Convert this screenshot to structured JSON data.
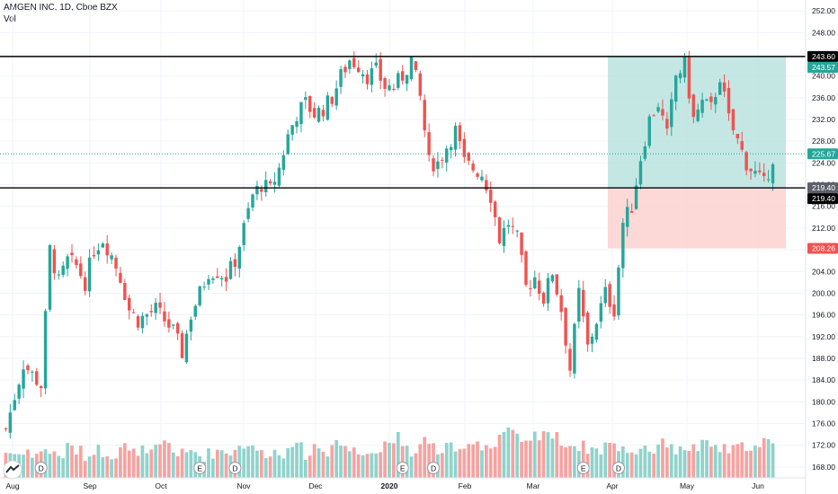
{
  "header": {
    "title": "AMGEN INC, 1D, Cboe BZX",
    "vol_label": "Vol"
  },
  "colors": {
    "up": "#26a69a",
    "down": "#ef5350",
    "vol_up": "#8fd3cc",
    "vol_down": "#f5a3a1",
    "target_zone": "#b2dfdb",
    "stop_zone": "#fcd1d0",
    "line": "#000000",
    "current": "#26a69a"
  },
  "chart_data": {
    "type": "candlestick",
    "title": "AMGEN INC, 1D, Cboe BZX",
    "ylim": [
      166,
      254
    ],
    "y_ticks": [
      "252.00",
      "248.00",
      "244.00",
      "240.00",
      "236.00",
      "232.00",
      "228.00",
      "224.00",
      "220.00",
      "216.00",
      "212.00",
      "208.00",
      "204.00",
      "200.00",
      "196.00",
      "192.00",
      "188.00",
      "184.00",
      "180.00",
      "176.00",
      "172.00",
      "168.00"
    ],
    "x_ticks": [
      "Aug",
      "Sep",
      "Oct",
      "Nov",
      "Dec",
      "2020",
      "Feb",
      "Mar",
      "Apr",
      "May",
      "Jun"
    ],
    "close_points": [
      [
        0,
        175
      ],
      [
        4,
        187
      ],
      [
        8,
        183
      ],
      [
        10,
        208
      ],
      [
        12,
        202
      ],
      [
        14,
        206
      ],
      [
        16,
        205
      ],
      [
        18,
        202
      ],
      [
        20,
        208
      ],
      [
        22,
        210
      ],
      [
        24,
        207
      ],
      [
        26,
        203
      ],
      [
        28,
        197
      ],
      [
        30,
        195
      ],
      [
        32,
        196
      ],
      [
        34,
        197
      ],
      [
        36,
        195
      ],
      [
        38,
        193
      ],
      [
        40,
        189
      ],
      [
        42,
        196
      ],
      [
        44,
        200
      ],
      [
        46,
        204
      ],
      [
        48,
        204
      ],
      [
        50,
        203
      ],
      [
        52,
        206
      ],
      [
        54,
        212
      ],
      [
        56,
        218
      ],
      [
        58,
        220
      ],
      [
        60,
        219
      ],
      [
        62,
        223
      ],
      [
        64,
        229
      ],
      [
        66,
        233
      ],
      [
        68,
        235
      ],
      [
        70,
        233
      ],
      [
        72,
        234
      ],
      [
        74,
        236
      ],
      [
        76,
        240
      ],
      [
        78,
        243
      ],
      [
        80,
        242
      ],
      [
        82,
        240
      ],
      [
        84,
        241
      ],
      [
        86,
        238
      ],
      [
        88,
        238
      ],
      [
        90,
        240
      ],
      [
        92,
        243
      ],
      [
        94,
        236
      ],
      [
        96,
        224
      ],
      [
        98,
        224
      ],
      [
        100,
        227
      ],
      [
        102,
        230
      ],
      [
        104,
        224
      ],
      [
        106,
        223
      ],
      [
        108,
        222
      ],
      [
        110,
        218
      ],
      [
        112,
        210
      ],
      [
        114,
        213
      ],
      [
        116,
        210
      ],
      [
        118,
        201
      ],
      [
        120,
        203
      ],
      [
        122,
        199
      ],
      [
        124,
        204
      ],
      [
        126,
        197
      ],
      [
        128,
        186
      ],
      [
        130,
        200
      ],
      [
        132,
        190
      ],
      [
        134,
        195
      ],
      [
        136,
        200
      ],
      [
        138,
        197
      ],
      [
        140,
        213
      ],
      [
        142,
        216
      ],
      [
        144,
        225
      ],
      [
        146,
        232
      ],
      [
        148,
        235
      ],
      [
        150,
        229
      ],
      [
        152,
        240
      ],
      [
        154,
        242
      ],
      [
        156,
        232
      ],
      [
        158,
        235
      ],
      [
        160,
        234
      ],
      [
        162,
        240
      ],
      [
        164,
        232
      ],
      [
        166,
        228
      ],
      [
        168,
        224
      ],
      [
        170,
        222
      ],
      [
        172,
        220
      ],
      [
        174,
        225
      ]
    ],
    "volume_profile": [
      20,
      18,
      22,
      15,
      24,
      19,
      17,
      25,
      21,
      16,
      23,
      20,
      18,
      26,
      19,
      22,
      17,
      24,
      30,
      20,
      18,
      21,
      16,
      19,
      22,
      20,
      25,
      28,
      23,
      19,
      21,
      17,
      30,
      24,
      18,
      26,
      20,
      32,
      27,
      22,
      19,
      24,
      21,
      30,
      35,
      22,
      18,
      33,
      26,
      21,
      24,
      20,
      29,
      31,
      27,
      25,
      36,
      40,
      33,
      28,
      38,
      42,
      35,
      30,
      27,
      26,
      24,
      22,
      29,
      25,
      23,
      20,
      26,
      22,
      28,
      30,
      21,
      25,
      24,
      27,
      26,
      23,
      22,
      25,
      27,
      24,
      30,
      26
    ],
    "series": [],
    "current_price": 225.67,
    "position": {
      "entry": 219.4,
      "target": 243.6,
      "stop": 208.26,
      "target_alt": 243.57
    },
    "horizontal_lines": [
      243.6,
      219.4
    ],
    "event_markers": [
      {
        "label": "D",
        "index": 8
      },
      {
        "label": "E",
        "index": 44
      },
      {
        "label": "D",
        "index": 52
      },
      {
        "label": "E",
        "index": 90
      },
      {
        "label": "D",
        "index": 97
      },
      {
        "label": "E",
        "index": 131
      },
      {
        "label": "D",
        "index": 139
      }
    ]
  },
  "price_tags": {
    "t1": "243.60",
    "t2": "243.57",
    "t3": "225.67",
    "t4": "219.40",
    "t5": "219.40",
    "t6": "208.26"
  }
}
